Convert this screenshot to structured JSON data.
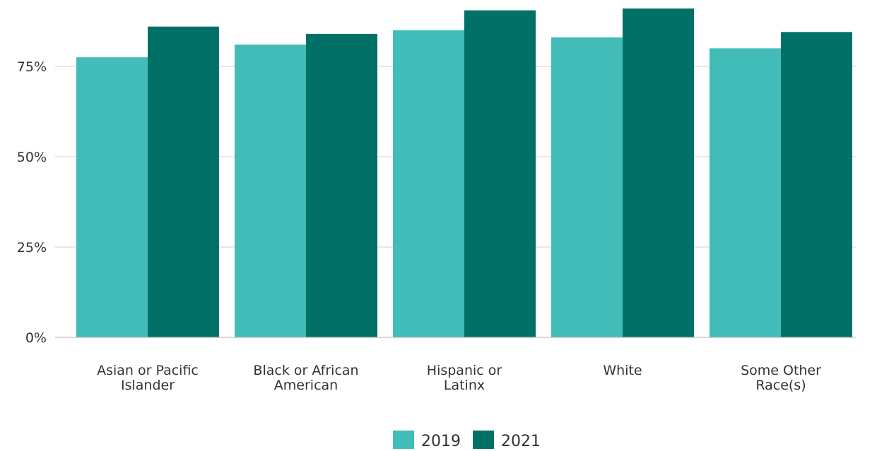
{
  "chart_data": {
    "type": "bar",
    "categories": [
      [
        "Asian or Pacific",
        "Islander"
      ],
      [
        "Black or African",
        "American"
      ],
      [
        "Hispanic or",
        "Latinx"
      ],
      [
        "White"
      ],
      [
        "Some Other",
        "Race(s)"
      ]
    ],
    "series": [
      {
        "name": "2019",
        "color": "#41bcb8",
        "values": [
          77.5,
          81,
          85,
          83,
          80
        ]
      },
      {
        "name": "2021",
        "color": "#017168",
        "values": [
          86,
          84,
          90.5,
          91,
          84.5
        ]
      }
    ],
    "y_ticks": [
      {
        "value": 0,
        "label": "0%"
      },
      {
        "value": 25,
        "label": "25%"
      },
      {
        "value": 50,
        "label": "50%"
      },
      {
        "value": 75,
        "label": "75%"
      }
    ],
    "ylim": [
      0,
      92
    ],
    "grid": true,
    "legend_position": "bottom-center"
  }
}
